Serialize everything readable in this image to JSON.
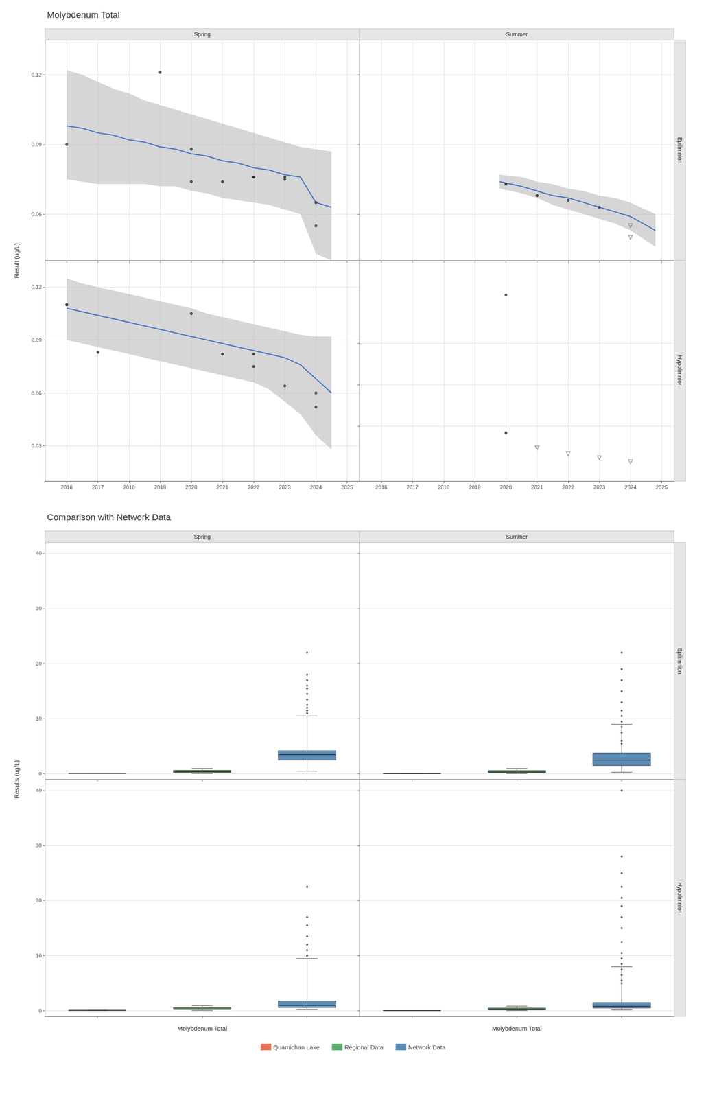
{
  "chart_data": [
    {
      "type": "scatter",
      "title": "Molybdenum Total",
      "ylabel": "Result (ug/L)",
      "column_labels": [
        "Spring",
        "Summer"
      ],
      "row_labels": [
        "Epilimnion",
        "Hypolimnion"
      ],
      "xlim": [
        2015.3,
        2025.4
      ],
      "xticks": [
        2016,
        2017,
        2018,
        2019,
        2020,
        2021,
        2022,
        2023,
        2024,
        2025
      ],
      "grid": true,
      "panels": [
        [
          {
            "ylim": [
              0.04,
              0.135
            ],
            "yticks": [
              0.06,
              0.09,
              0.12
            ],
            "tick_labels": "y",
            "series": [
              {
                "type": "band",
                "color": "#BBBBBB",
                "x": [
                  2016.0,
                  2016.5,
                  2017.0,
                  2017.5,
                  2018.0,
                  2018.5,
                  2019.0,
                  2019.5,
                  2020.0,
                  2020.5,
                  2021.0,
                  2021.5,
                  2022.0,
                  2022.5,
                  2023.0,
                  2023.5,
                  2024.0,
                  2024.5
                ],
                "lower": [
                  0.075,
                  0.074,
                  0.073,
                  0.073,
                  0.073,
                  0.073,
                  0.072,
                  0.072,
                  0.07,
                  0.069,
                  0.067,
                  0.066,
                  0.065,
                  0.064,
                  0.062,
                  0.06,
                  0.043,
                  0.04
                ],
                "upper": [
                  0.122,
                  0.12,
                  0.117,
                  0.114,
                  0.112,
                  0.109,
                  0.107,
                  0.105,
                  0.103,
                  0.101,
                  0.099,
                  0.097,
                  0.095,
                  0.093,
                  0.091,
                  0.089,
                  0.088,
                  0.087
                ]
              },
              {
                "type": "line",
                "color": "#4472C4",
                "x": [
                  2016.0,
                  2016.5,
                  2017.0,
                  2017.5,
                  2018.0,
                  2018.5,
                  2019.0,
                  2019.5,
                  2020.0,
                  2020.5,
                  2021.0,
                  2021.5,
                  2022.0,
                  2022.5,
                  2023.0,
                  2023.5,
                  2024.0,
                  2024.5
                ],
                "values": [
                  0.098,
                  0.097,
                  0.095,
                  0.094,
                  0.092,
                  0.091,
                  0.089,
                  0.088,
                  0.086,
                  0.085,
                  0.083,
                  0.082,
                  0.08,
                  0.079,
                  0.077,
                  0.076,
                  0.065,
                  0.063
                ]
              },
              {
                "type": "scatter",
                "marker": "circle",
                "color": "#2a2a2a",
                "x": [
                  2016,
                  2019,
                  2020,
                  2020,
                  2021,
                  2022,
                  2022,
                  2023,
                  2023,
                  2024,
                  2024
                ],
                "values": [
                  0.09,
                  0.121,
                  0.088,
                  0.074,
                  0.074,
                  0.076,
                  0.076,
                  0.075,
                  0.076,
                  0.065,
                  0.055
                ]
              }
            ]
          },
          {
            "ylim": [
              0.04,
              0.135
            ],
            "yticks": [
              0.06,
              0.09,
              0.12
            ],
            "tick_labels": false,
            "series": [
              {
                "type": "band",
                "color": "#BBBBBB",
                "x": [
                  2019.8,
                  2020.5,
                  2021.0,
                  2021.5,
                  2022.0,
                  2022.5,
                  2023.0,
                  2023.5,
                  2024.0,
                  2024.8
                ],
                "lower": [
                  0.071,
                  0.069,
                  0.067,
                  0.064,
                  0.062,
                  0.06,
                  0.058,
                  0.056,
                  0.053,
                  0.046
                ],
                "upper": [
                  0.077,
                  0.076,
                  0.074,
                  0.073,
                  0.071,
                  0.07,
                  0.068,
                  0.067,
                  0.065,
                  0.06
                ]
              },
              {
                "type": "line",
                "color": "#4472C4",
                "x": [
                  2019.8,
                  2020.5,
                  2021.0,
                  2021.5,
                  2022.0,
                  2022.5,
                  2023.0,
                  2023.5,
                  2024.0,
                  2024.8
                ],
                "values": [
                  0.074,
                  0.072,
                  0.07,
                  0.068,
                  0.067,
                  0.065,
                  0.063,
                  0.061,
                  0.059,
                  0.053
                ]
              },
              {
                "type": "scatter",
                "marker": "circle",
                "color": "#2a2a2a",
                "x": [
                  2020,
                  2020,
                  2021,
                  2021,
                  2022,
                  2023
                ],
                "values": [
                  0.073,
                  0.073,
                  0.068,
                  0.068,
                  0.066,
                  0.063
                ]
              },
              {
                "type": "scatter",
                "marker": "triangle-down-open",
                "color": "#666666",
                "x": [
                  2024,
                  2024
                ],
                "values": [
                  0.055,
                  0.05
                ]
              }
            ]
          }
        ],
        [
          {
            "ylim": [
              0.01,
              0.135
            ],
            "yticks": [
              0.03,
              0.06,
              0.09,
              0.12
            ],
            "series": [
              {
                "type": "band",
                "color": "#BBBBBB",
                "x": [
                  2016.0,
                  2016.5,
                  2017.0,
                  2017.5,
                  2018.0,
                  2018.5,
                  2019.0,
                  2019.5,
                  2020.0,
                  2020.5,
                  2021.0,
                  2021.5,
                  2022.0,
                  2022.5,
                  2023.0,
                  2023.5,
                  2024.0,
                  2024.5
                ],
                "lower": [
                  0.09,
                  0.088,
                  0.086,
                  0.084,
                  0.082,
                  0.08,
                  0.078,
                  0.076,
                  0.074,
                  0.072,
                  0.07,
                  0.068,
                  0.066,
                  0.062,
                  0.055,
                  0.048,
                  0.036,
                  0.028
                ],
                "upper": [
                  0.125,
                  0.122,
                  0.12,
                  0.118,
                  0.116,
                  0.114,
                  0.112,
                  0.11,
                  0.108,
                  0.105,
                  0.103,
                  0.101,
                  0.099,
                  0.097,
                  0.095,
                  0.093,
                  0.092,
                  0.092
                ]
              },
              {
                "type": "line",
                "color": "#4472C4",
                "x": [
                  2016.0,
                  2016.5,
                  2017.0,
                  2017.5,
                  2018.0,
                  2018.5,
                  2019.0,
                  2019.5,
                  2020.0,
                  2020.5,
                  2021.0,
                  2021.5,
                  2022.0,
                  2022.5,
                  2023.0,
                  2023.5,
                  2024.0,
                  2024.5
                ],
                "values": [
                  0.108,
                  0.106,
                  0.104,
                  0.102,
                  0.1,
                  0.098,
                  0.096,
                  0.094,
                  0.092,
                  0.09,
                  0.088,
                  0.086,
                  0.084,
                  0.082,
                  0.08,
                  0.076,
                  0.068,
                  0.06
                ]
              },
              {
                "type": "scatter",
                "marker": "circle",
                "color": "#2a2a2a",
                "x": [
                  2016,
                  2016,
                  2017,
                  2020,
                  2021,
                  2022,
                  2022,
                  2023,
                  2024,
                  2024
                ],
                "values": [
                  0.11,
                  0.11,
                  0.083,
                  0.105,
                  0.082,
                  0.082,
                  0.075,
                  0.064,
                  0.06,
                  0.052
                ]
              }
            ]
          },
          {
            "ylim": [
              0.02,
              0.18
            ],
            "yticks": [
              0.06,
              0.09,
              0.12
            ],
            "tick_labels": "x",
            "series": [
              {
                "type": "scatter",
                "marker": "circle",
                "color": "#2a2a2a",
                "x": [
                  2020,
                  2020
                ],
                "values": [
                  0.155,
                  0.055
                ]
              },
              {
                "type": "scatter",
                "marker": "triangle-down-open",
                "color": "#666666",
                "x": [
                  2021,
                  2022,
                  2023,
                  2024
                ],
                "values": [
                  0.044,
                  0.04,
                  0.037,
                  0.034
                ]
              }
            ]
          }
        ]
      ]
    },
    {
      "type": "box",
      "title": "Comparison with Network Data",
      "ylabel": "Results (ug/L)",
      "xlabel": "Molybdenum Total",
      "column_labels": [
        "Spring",
        "Summer"
      ],
      "row_labels": [
        "Epilimnion",
        "Hypolimnion"
      ],
      "categories": [
        null,
        null,
        null
      ],
      "ylim": [
        -1,
        42
      ],
      "yticks": [
        0,
        10,
        20,
        30,
        40
      ],
      "grid": "y",
      "legend": "bottom",
      "series": [
        {
          "name": "Quamichan Lake",
          "color": "#E8735A"
        },
        {
          "name": "Regional Data",
          "color": "#5CAD6E"
        },
        {
          "name": "Network Data",
          "color": "#5B8DB8"
        }
      ],
      "panels": [
        [
          {
            "tick_labels": "y",
            "median": [
              0.087,
              0.4,
              3.5
            ],
            "q1": [
              0.082,
              0.25,
              2.5
            ],
            "q3": [
              0.092,
              0.65,
              4.2
            ],
            "whislo": [
              0.07,
              0.08,
              0.5
            ],
            "whishi": [
              0.098,
              1.0,
              10.5
            ],
            "outliers": [
              [],
              [],
              [
                18.0,
                17.0,
                16.0,
                15.5,
                14.5,
                13.5,
                12.5,
                12.0,
                11.5,
                11.0,
                22.0
              ]
            ]
          },
          {
            "tick_labels": false,
            "median": [
              0.063,
              0.35,
              2.5
            ],
            "q1": [
              0.056,
              0.2,
              1.5
            ],
            "q3": [
              0.07,
              0.6,
              3.8
            ],
            "whislo": [
              0.05,
              0.05,
              0.3
            ],
            "whishi": [
              0.075,
              1.0,
              9.0
            ],
            "outliers": [
              [],
              [],
              [
                22.0,
                19.0,
                17.0,
                15.0,
                13.0,
                11.5,
                10.5,
                9.5,
                8.5,
                7.5,
                6.0,
                5.5
              ]
            ]
          }
        ],
        [
          {
            "tick_labels": "y",
            "median": [
              0.083,
              0.35,
              1.0
            ],
            "q1": [
              0.072,
              0.22,
              0.6
            ],
            "q3": [
              0.096,
              0.6,
              1.8
            ],
            "whislo": [
              0.052,
              0.05,
              0.2
            ],
            "whishi": [
              0.11,
              0.95,
              9.5
            ],
            "outliers": [
              [],
              [],
              [
                22.5,
                17.0,
                15.5,
                13.5,
                12.0,
                11.0,
                10.0
              ]
            ]
          },
          {
            "tick_labels": false,
            "median": [
              0.042,
              0.28,
              0.8
            ],
            "q1": [
              0.035,
              0.15,
              0.5
            ],
            "q3": [
              0.05,
              0.5,
              1.5
            ],
            "whislo": [
              0.025,
              0.04,
              0.15
            ],
            "whishi": [
              0.06,
              0.85,
              8.0
            ],
            "outliers": [
              [],
              [],
              [
                40.0,
                28.0,
                25.0,
                22.5,
                20.5,
                19.0,
                17.0,
                15.0,
                12.5,
                10.5,
                9.5,
                8.5,
                7.5,
                6.5,
                5.5,
                5.0
              ]
            ]
          }
        ]
      ]
    }
  ]
}
